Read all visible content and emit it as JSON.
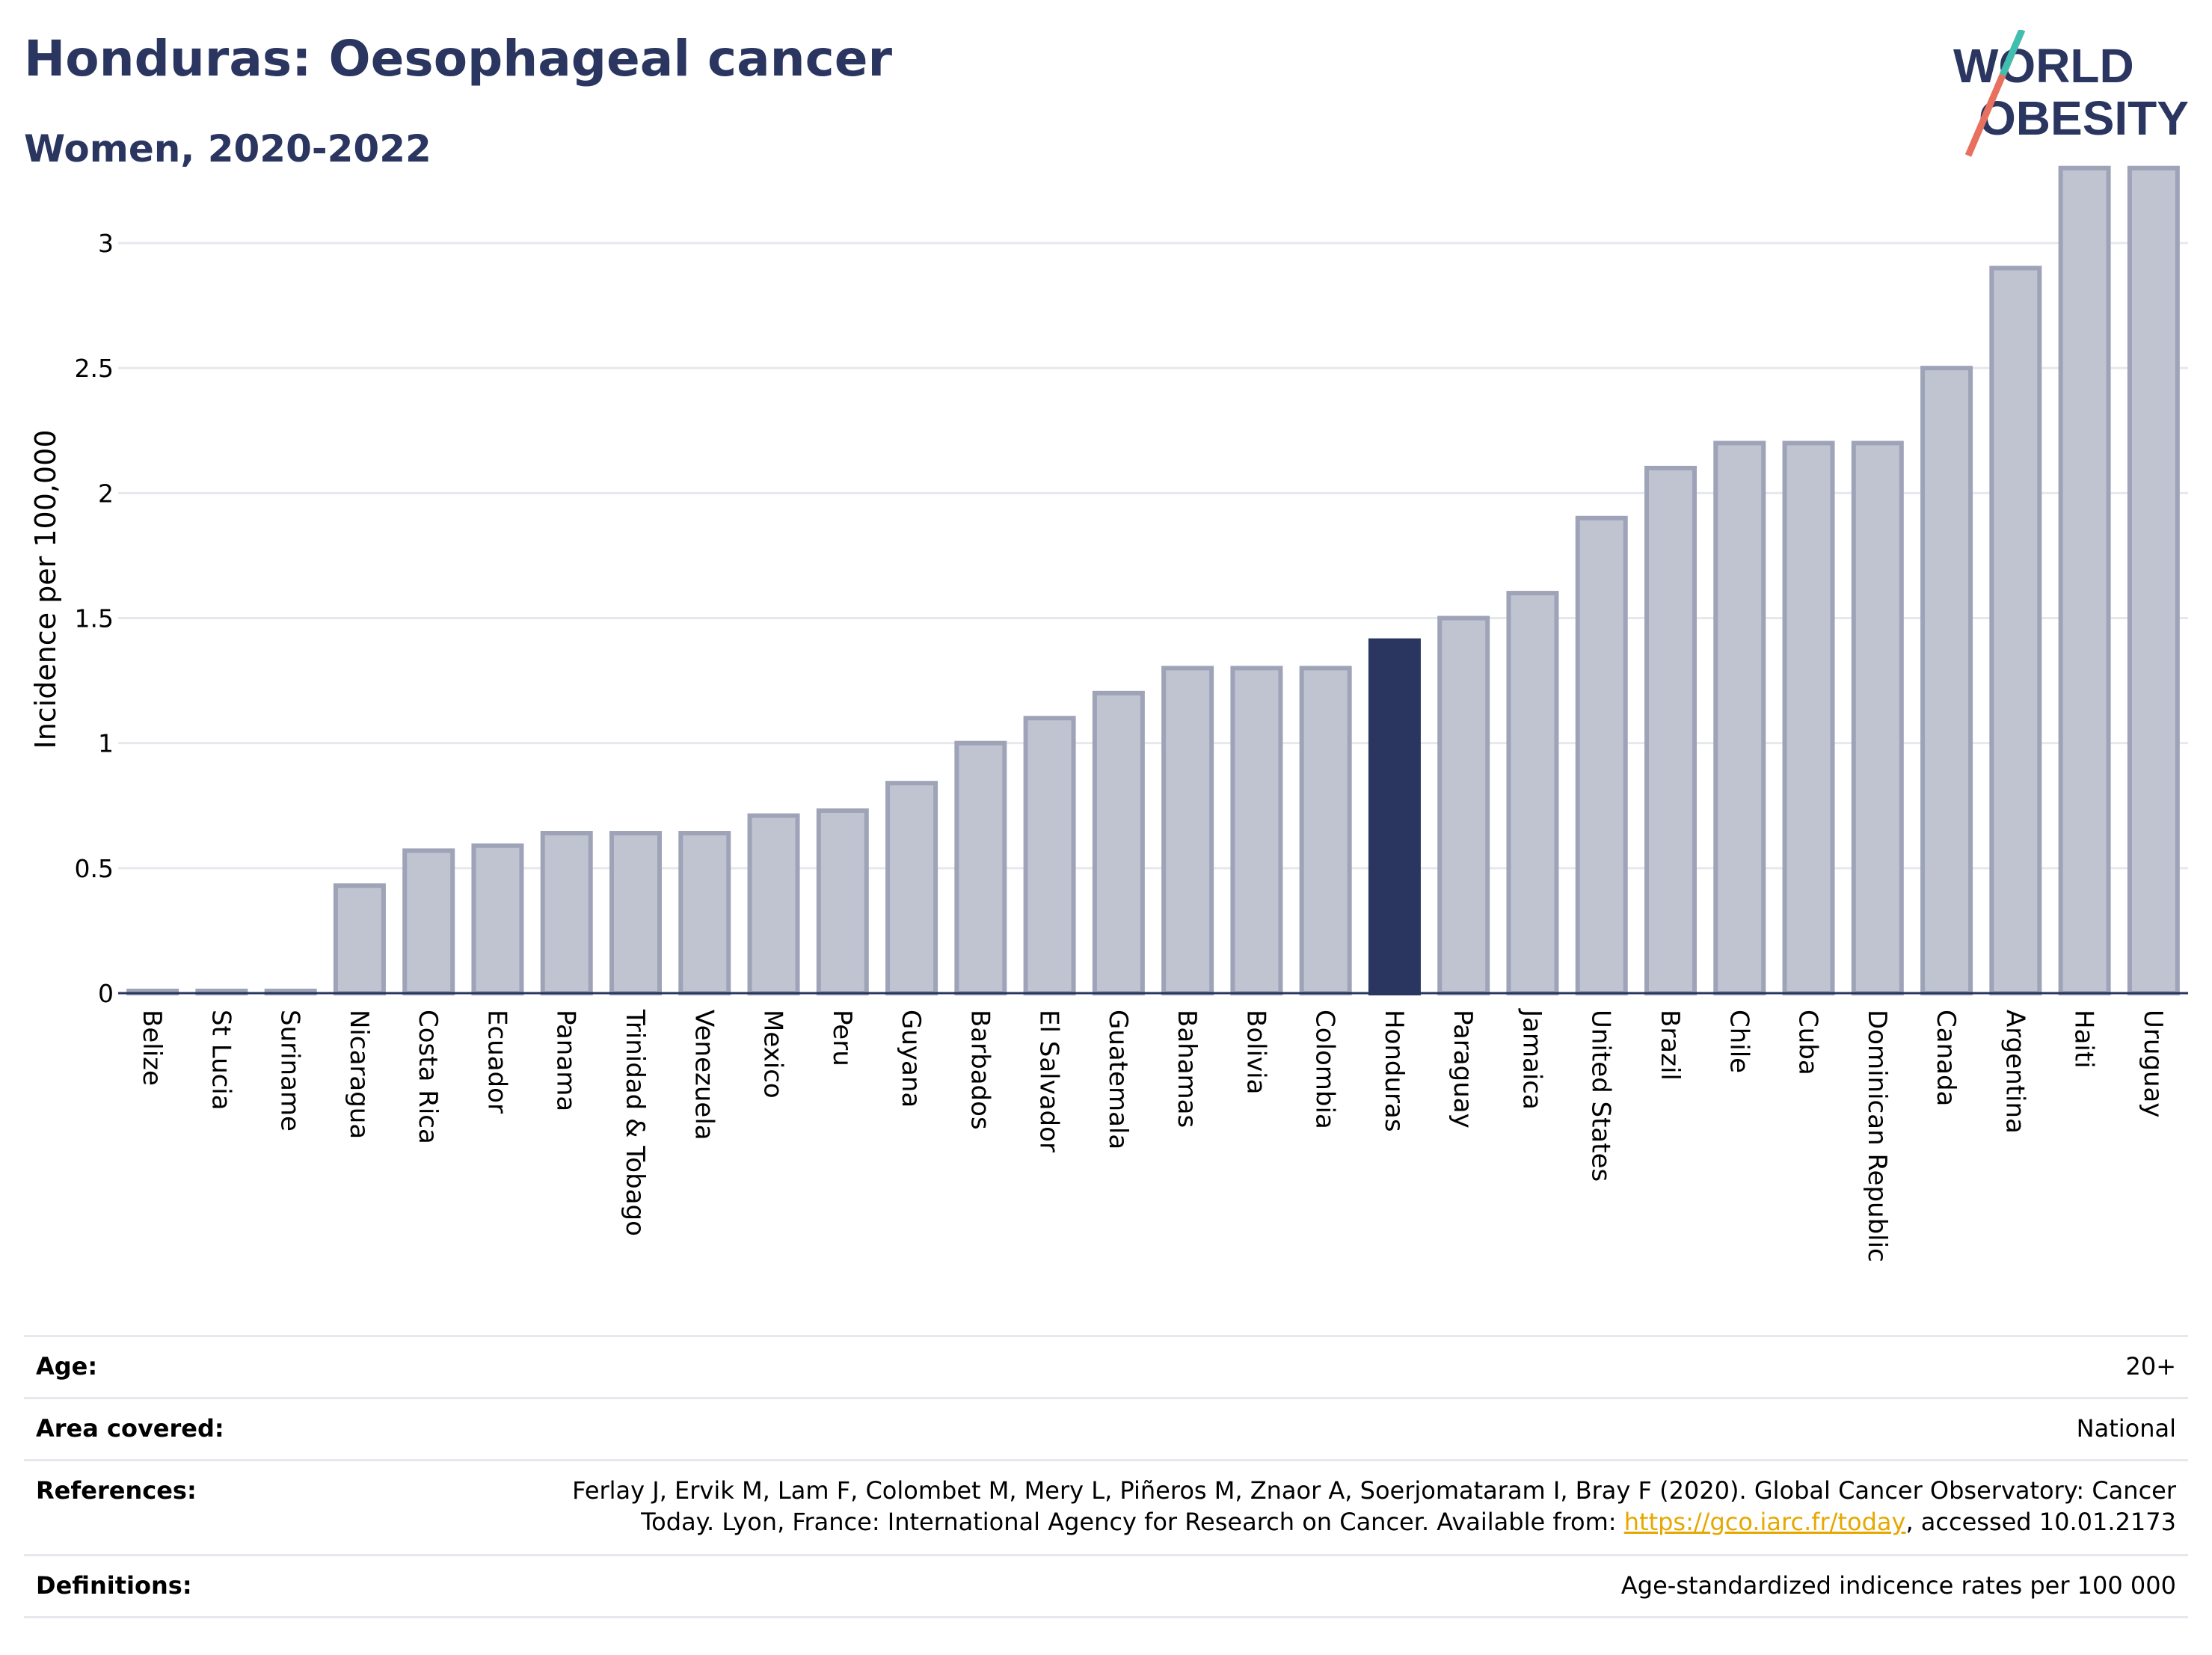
{
  "header": {
    "title": "Honduras: Oesophageal cancer",
    "subtitle": "Women, 2020-2022"
  },
  "logo": {
    "line1": "WORLD",
    "line2": "OBESITY"
  },
  "chart_data": {
    "type": "bar",
    "ylabel": "Incidence per 100,000",
    "ylim": [
      0,
      3.35
    ],
    "yticks": [
      "0",
      "0.5",
      "1",
      "1.5",
      "2",
      "2.5",
      "3"
    ],
    "grid": true,
    "highlight": "Honduras",
    "colors": {
      "bar": "#c0c3d0",
      "bar_border": "#9ea3b8",
      "highlight": "#2a3560"
    },
    "categories": [
      "Belize",
      "St Lucia",
      "Suriname",
      "Nicaragua",
      "Costa Rica",
      "Ecuador",
      "Panama",
      "Trinidad & Tobago",
      "Venezuela",
      "Mexico",
      "Peru",
      "Guyana",
      "Barbados",
      "El Salvador",
      "Guatemala",
      "Bahamas",
      "Bolivia",
      "Colombia",
      "Honduras",
      "Paraguay",
      "Jamaica",
      "United States",
      "Brazil",
      "Chile",
      "Cuba",
      "Dominican Republic",
      "Canada",
      "Argentina",
      "Haiti",
      "Uruguay"
    ],
    "values": [
      0,
      0,
      0,
      0.43,
      0.57,
      0.59,
      0.64,
      0.64,
      0.64,
      0.71,
      0.73,
      0.84,
      1.0,
      1.1,
      1.2,
      1.3,
      1.3,
      1.3,
      1.41,
      1.5,
      1.6,
      1.9,
      2.1,
      2.2,
      2.2,
      2.2,
      2.5,
      2.9,
      3.3,
      3.3
    ]
  },
  "info": {
    "age_label": "Age:",
    "age_value": "20+",
    "area_label": "Area covered:",
    "area_value": "National",
    "references_label": "References:",
    "references_line1": "Ferlay J, Ervik M, Lam F, Colombet M, Mery L, Piñeros M, Znaor A, Soerjomataram I, Bray F (2020). Global Cancer Observatory: Cancer",
    "references_line2_pre": "Today. Lyon, France: International Agency for Research on Cancer. Available from: ",
    "references_link": "https://gco.iarc.fr/today",
    "references_line2_post": ", accessed 10.01.2173",
    "definitions_label": "Definitions:",
    "definitions_value": "Age-standardized indicence rates per 100 000"
  }
}
